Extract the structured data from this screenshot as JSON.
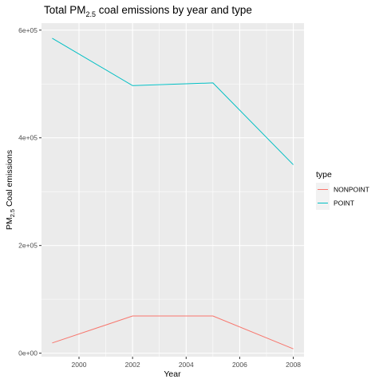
{
  "chart_data": {
    "type": "line",
    "title": "Total PM",
    "title_subscript": "2.5",
    "title_suffix": " coal emissions by year and type",
    "xlabel": "Year",
    "ylabel": "PM",
    "ylabel_subscript": "2.5",
    "ylabel_suffix": " Coal emissions",
    "x": [
      1999,
      2002,
      2005,
      2008
    ],
    "xlim": [
      1998.6,
      2008.4
    ],
    "ylim": [
      -6500,
      613000
    ],
    "xticks": [
      2000,
      2002,
      2004,
      2006,
      2008
    ],
    "xtick_labels": [
      "2000",
      "2002",
      "2004",
      "2006",
      "2008"
    ],
    "yticks": [
      0,
      200000,
      400000,
      600000
    ],
    "ytick_labels": [
      "0e+00",
      "2e+05",
      "4e+05",
      "6e+05"
    ],
    "grid": true,
    "legend": {
      "title": "type",
      "position": "right"
    },
    "series": [
      {
        "name": "NONPOINT",
        "color": "#F8766D",
        "values": [
          19000,
          69000,
          69000,
          8000
        ]
      },
      {
        "name": "POINT",
        "color": "#00BFC4",
        "values": [
          585000,
          497000,
          502000,
          350000
        ]
      }
    ]
  }
}
